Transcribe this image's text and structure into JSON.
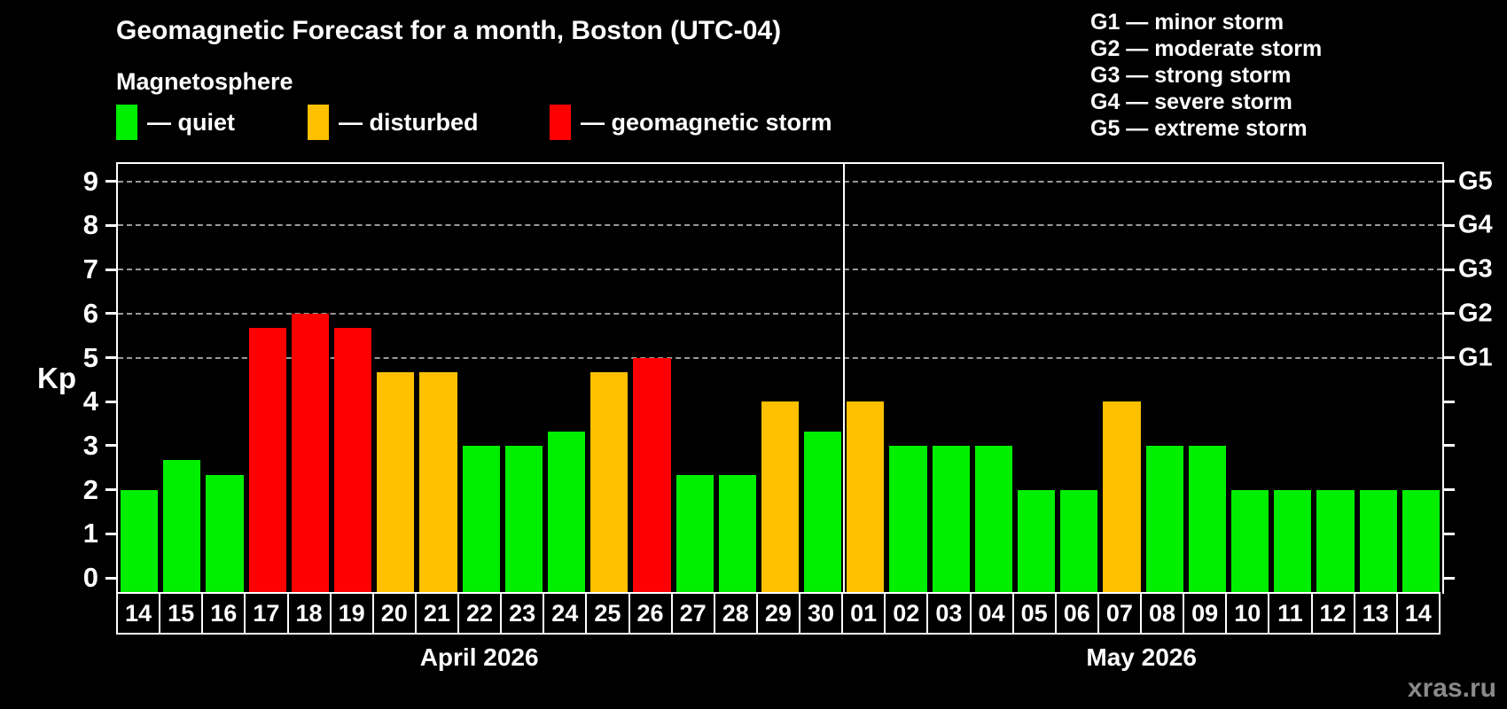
{
  "header": {
    "title": "Geomagnetic Forecast for a month, Boston (UTC-04)",
    "subtitle": "Magnetosphere"
  },
  "legend": {
    "items": [
      {
        "label": "— quiet",
        "status": "quiet"
      },
      {
        "label": "— disturbed",
        "status": "disturbed"
      },
      {
        "label": "— geomagnetic storm",
        "status": "storm"
      }
    ]
  },
  "g_scale_legend": {
    "items": [
      "G1 — minor storm",
      "G2 — moderate storm",
      "G3 — strong storm",
      "G4 — severe storm",
      "G5 — extreme storm"
    ]
  },
  "watermark": "xras.ru",
  "chart_data": {
    "type": "bar",
    "title": "Geomagnetic Forecast for a month, Boston (UTC-04)",
    "ylabel": "Kp",
    "ylim": [
      0,
      9
    ],
    "y_ticks": [
      0,
      1,
      2,
      3,
      4,
      5,
      6,
      7,
      8,
      9
    ],
    "gridlines_at": [
      5,
      6,
      7,
      8,
      9
    ],
    "grid_style": "dashed",
    "legend_position": "top",
    "right_axis": [
      {
        "kp": 5,
        "label": "G1"
      },
      {
        "kp": 6,
        "label": "G2"
      },
      {
        "kp": 7,
        "label": "G3"
      },
      {
        "kp": 8,
        "label": "G4"
      },
      {
        "kp": 9,
        "label": "G5"
      }
    ],
    "status_colors": {
      "quiet": "#00ee00",
      "disturbed": "#ffc000",
      "storm": "#ff0000"
    },
    "months": [
      {
        "label": "April 2026",
        "days": [
          {
            "day": "14",
            "kp": 2.0,
            "status": "quiet"
          },
          {
            "day": "15",
            "kp": 2.67,
            "status": "quiet"
          },
          {
            "day": "16",
            "kp": 2.33,
            "status": "quiet"
          },
          {
            "day": "17",
            "kp": 5.67,
            "status": "storm"
          },
          {
            "day": "18",
            "kp": 6.0,
            "status": "storm"
          },
          {
            "day": "19",
            "kp": 5.67,
            "status": "storm"
          },
          {
            "day": "20",
            "kp": 4.67,
            "status": "disturbed"
          },
          {
            "day": "21",
            "kp": 4.67,
            "status": "disturbed"
          },
          {
            "day": "22",
            "kp": 3.0,
            "status": "quiet"
          },
          {
            "day": "23",
            "kp": 3.0,
            "status": "quiet"
          },
          {
            "day": "24",
            "kp": 3.33,
            "status": "quiet"
          },
          {
            "day": "25",
            "kp": 4.67,
            "status": "disturbed"
          },
          {
            "day": "26",
            "kp": 5.0,
            "status": "storm"
          },
          {
            "day": "27",
            "kp": 2.33,
            "status": "quiet"
          },
          {
            "day": "28",
            "kp": 2.33,
            "status": "quiet"
          },
          {
            "day": "29",
            "kp": 4.0,
            "status": "disturbed"
          },
          {
            "day": "30",
            "kp": 3.33,
            "status": "quiet"
          }
        ]
      },
      {
        "label": "May 2026",
        "days": [
          {
            "day": "01",
            "kp": 4.0,
            "status": "disturbed"
          },
          {
            "day": "02",
            "kp": 3.0,
            "status": "quiet"
          },
          {
            "day": "03",
            "kp": 3.0,
            "status": "quiet"
          },
          {
            "day": "04",
            "kp": 3.0,
            "status": "quiet"
          },
          {
            "day": "05",
            "kp": 2.0,
            "status": "quiet"
          },
          {
            "day": "06",
            "kp": 2.0,
            "status": "quiet"
          },
          {
            "day": "07",
            "kp": 4.0,
            "status": "disturbed"
          },
          {
            "day": "08",
            "kp": 3.0,
            "status": "quiet"
          },
          {
            "day": "09",
            "kp": 3.0,
            "status": "quiet"
          },
          {
            "day": "10",
            "kp": 2.0,
            "status": "quiet"
          },
          {
            "day": "11",
            "kp": 2.0,
            "status": "quiet"
          },
          {
            "day": "12",
            "kp": 2.0,
            "status": "quiet"
          },
          {
            "day": "13",
            "kp": 2.0,
            "status": "quiet"
          },
          {
            "day": "14",
            "kp": 2.0,
            "status": "quiet"
          }
        ]
      }
    ]
  }
}
